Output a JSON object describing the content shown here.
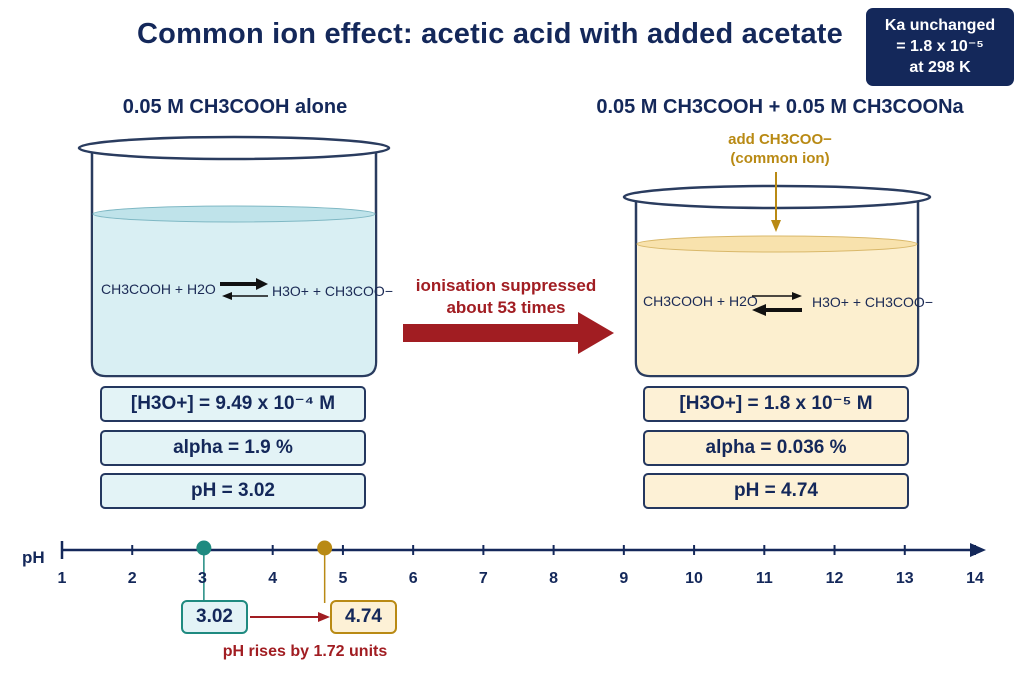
{
  "title": "Common ion effect: acetic acid with added acetate",
  "ka_note": {
    "line1": "Ka unchanged",
    "line2": "= 1.8 x 10⁻⁵",
    "line3": "at 298 K"
  },
  "left": {
    "label": "0.05 M CH3COOH alone",
    "equation_reactant": "CH3COOH + H2O",
    "equation_product": "H3O+ + CH3COO−",
    "h3o": "[H3O+] = 9.49 x 10⁻⁴ M",
    "alpha": "alpha = 1.9 %",
    "ph": "pH = 3.02",
    "liquid_color": "#d9eff3"
  },
  "right": {
    "label": "0.05 M CH3COOH + 0.05 M CH3COONa",
    "equation_reactant": "CH3COOH + H2O",
    "equation_product": "H3O+ + CH3COO−",
    "h3o": "[H3O+] = 1.8 x 10⁻⁵  M",
    "alpha": "alpha = 0.036 %",
    "ph": "pH = 4.74",
    "liquid_color": "#fcefcf",
    "add_ion_line1": "add CH3COO−",
    "add_ion_line2": "(common ion)"
  },
  "suppression": {
    "line1": "ionisation suppressed",
    "line2": "about 53 times"
  },
  "ph_scale": {
    "label": "pH",
    "ticks": [
      "1",
      "2",
      "3",
      "4",
      "5",
      "6",
      "7",
      "8",
      "9",
      "10",
      "11",
      "12",
      "13",
      "14"
    ],
    "min": 1,
    "max": 14,
    "marker_left": 3.02,
    "marker_right": 4.74,
    "box_left": "3.02",
    "box_right": "4.74",
    "rise_text": "pH rises by 1.72 units"
  },
  "colors": {
    "navy": "#14285a",
    "teal": "#1f8a80",
    "gold": "#b98a14",
    "red": "#a11d22"
  }
}
